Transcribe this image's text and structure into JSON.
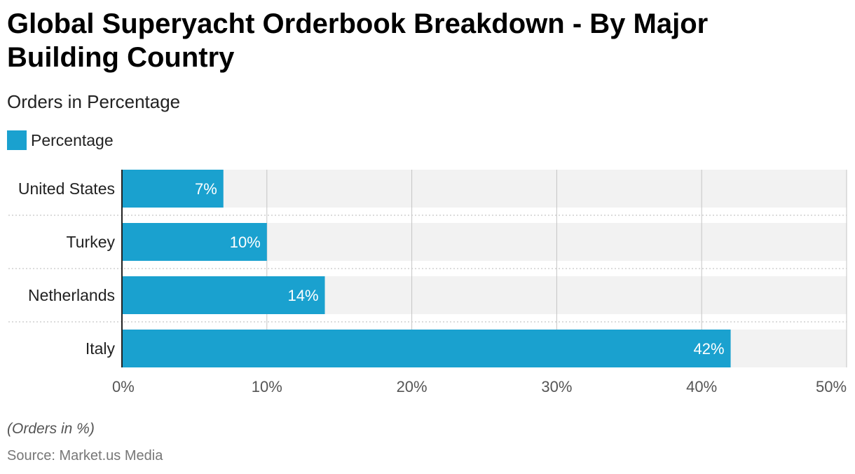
{
  "title": "Global Superyacht Orderbook Breakdown - By Major Building Country",
  "subtitle": "Orders in Percentage",
  "legend": {
    "label": "Percentage",
    "color": "#1aa1cf"
  },
  "note": "(Orders in %)",
  "source": "Source: Market.us Media",
  "chart_data": {
    "type": "bar",
    "orientation": "horizontal",
    "categories": [
      "United States",
      "Turkey",
      "Netherlands",
      "Italy"
    ],
    "series": [
      {
        "name": "Percentage",
        "values": [
          7,
          10,
          14,
          42
        ],
        "color": "#1aa1cf"
      }
    ],
    "data_labels": [
      "7%",
      "10%",
      "14%",
      "42%"
    ],
    "xlim": [
      0,
      50
    ],
    "x_ticks": [
      0,
      10,
      20,
      30,
      40,
      50
    ],
    "x_tick_labels": [
      "0%",
      "10%",
      "20%",
      "30%",
      "40%",
      "50%"
    ],
    "xlabel": "",
    "ylabel": "",
    "grid": true,
    "legend_position": "top-left"
  }
}
